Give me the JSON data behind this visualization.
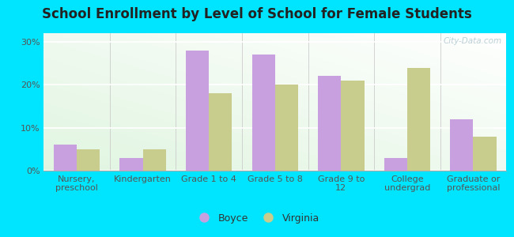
{
  "title": "School Enrollment by Level of School for Female Students",
  "categories": [
    "Nursery,\npreschool",
    "Kindergarten",
    "Grade 1 to 4",
    "Grade 5 to 8",
    "Grade 9 to\n12",
    "College\nundergrad",
    "Graduate or\nprofessional"
  ],
  "boyce": [
    6.0,
    3.0,
    28.0,
    27.0,
    22.0,
    3.0,
    12.0
  ],
  "virginia": [
    5.0,
    5.0,
    18.0,
    20.0,
    21.0,
    24.0,
    8.0
  ],
  "boyce_color": "#c8a0e0",
  "virginia_color": "#c8cc8c",
  "background_outer": "#00e5ff",
  "background_inner_topleft": "#e8f5e0",
  "background_inner_bottomright": "#ffffff",
  "yticks": [
    0,
    10,
    20,
    30
  ],
  "ylim": [
    0,
    32
  ],
  "bar_width": 0.35,
  "legend_labels": [
    "Boyce",
    "Virginia"
  ],
  "watermark": "City-Data.com",
  "title_fontsize": 12,
  "tick_fontsize": 8,
  "legend_fontsize": 9
}
